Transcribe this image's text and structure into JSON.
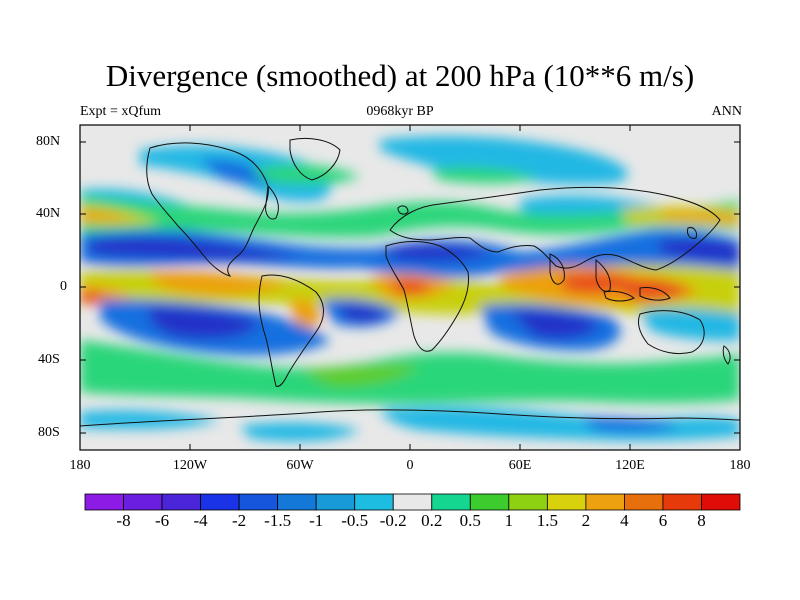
{
  "title": "Divergence (smoothed) at 200 hPa (10**6 m/s)",
  "left_label": "Expt = xQfum",
  "center_label": "0968kyr BP",
  "right_label": "ANN",
  "lat_ticks": [
    "80N",
    "40N",
    "0",
    "40S",
    "80S"
  ],
  "lon_ticks": [
    "180",
    "120W",
    "60W",
    "0",
    "60E",
    "120E",
    "180"
  ],
  "colorbar": {
    "labels": [
      "-8",
      "-6",
      "-4",
      "-2",
      "-1.5",
      "-1",
      "-0.5",
      "-0.2",
      "0.2",
      "0.5",
      "1",
      "1.5",
      "2",
      "4",
      "6",
      "8"
    ],
    "colors": [
      "#8c1be6",
      "#6a1ee0",
      "#4a25d9",
      "#1a33e6",
      "#1656dd",
      "#1478d8",
      "#189ad8",
      "#1cbde0",
      "#e8e8e8",
      "#14d690",
      "#3ccc2e",
      "#8ed012",
      "#d8d20e",
      "#eca10e",
      "#e8700c",
      "#e63a0a",
      "#e00c08"
    ]
  },
  "map_colors": {
    "background": "#e8e8e8",
    "strong_neg": "#2430c8",
    "mid_neg": "#1670e0",
    "weak_neg": "#22b8e4",
    "weak_pos": "#2ad67a",
    "mid_pos": "#5fcc26",
    "pos_yellow": "#c8d010",
    "pos_orange": "#eca010",
    "pos_red": "#e8501a",
    "land": "#111111"
  }
}
